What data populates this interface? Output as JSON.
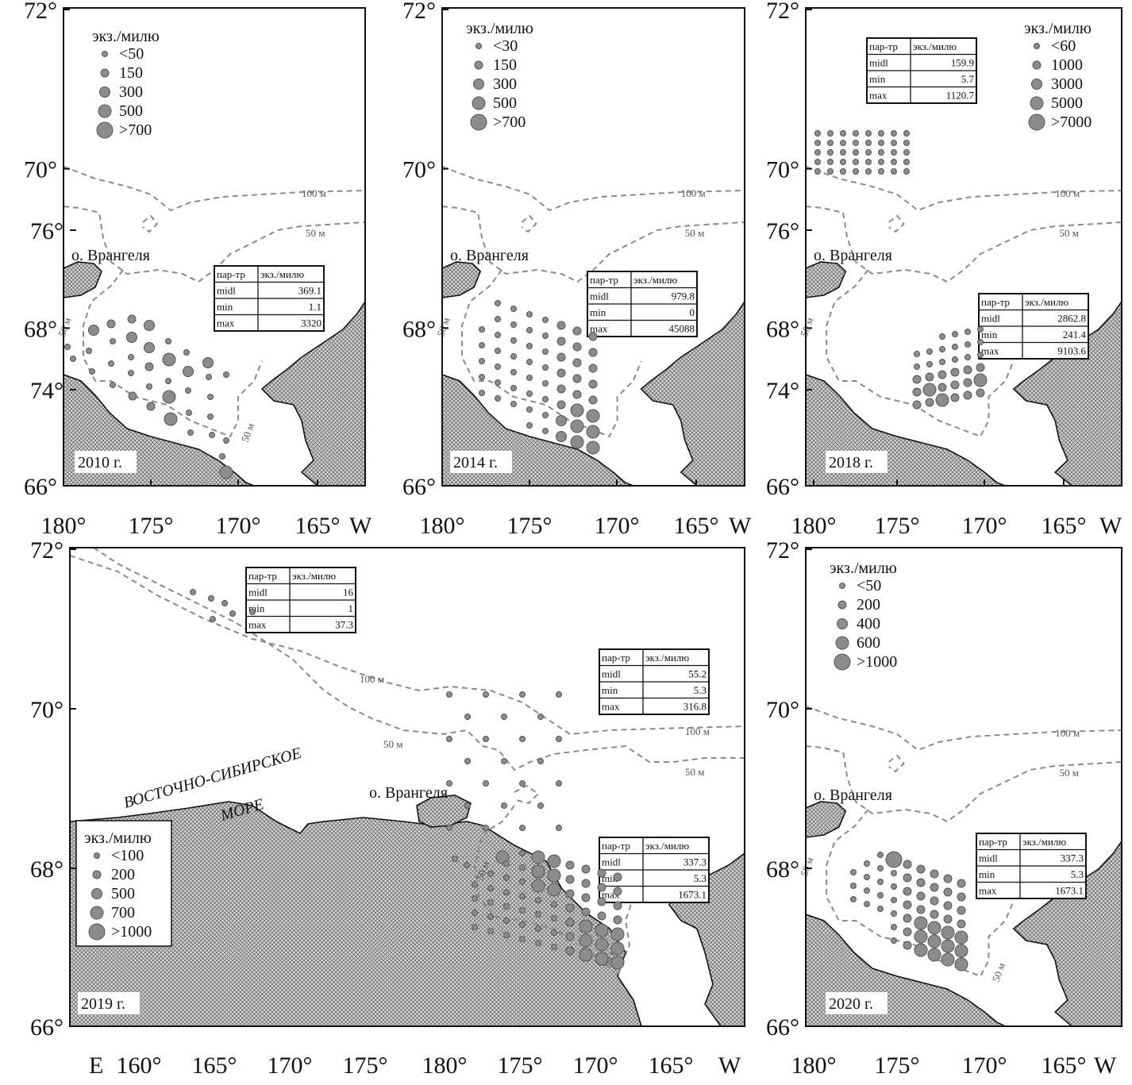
{
  "figure": {
    "lat_labels": [
      "76°",
      "74°",
      "72°",
      "70°",
      "68°",
      "66°"
    ],
    "lon_labels_top": [
      "180°",
      "175°",
      "170°",
      "165°",
      "W"
    ],
    "lon_labels_bottom": [
      "E",
      "160°",
      "165°",
      "170°",
      "175°",
      "180°",
      "175°",
      "170°",
      "165°",
      "W"
    ],
    "colors": {
      "points": "#8c8c8c",
      "isobath": "#8a8a8a",
      "land": "#cfcfcf"
    }
  },
  "panels": [
    {
      "year": "2010 г.",
      "island_label": "о. Врангеля",
      "isobaths": [
        "100 м",
        "50 м",
        "50 м",
        "50 м"
      ],
      "legend": {
        "title": "экз./милю",
        "items": [
          "<50",
          "150",
          "300",
          "500",
          ">700"
        ]
      },
      "tables": [
        {
          "header": [
            "пар-тр",
            "экз./милю"
          ],
          "rows": [
            [
              "midl",
              "369.1"
            ],
            [
              "min",
              "1.1"
            ],
            [
              "max",
              "3320"
            ]
          ]
        }
      ]
    },
    {
      "year": "2014 г.",
      "island_label": "о. Врангеля",
      "isobaths": [
        "100 м",
        "50 м",
        "50 м"
      ],
      "legend": {
        "title": "экз./милю",
        "items": [
          "<30",
          "150",
          "300",
          "500",
          ">700"
        ]
      },
      "tables": [
        {
          "header": [
            "пар-тр",
            "экз./милю"
          ],
          "rows": [
            [
              "midl",
              "979.8"
            ],
            [
              "min",
              "0"
            ],
            [
              "max",
              "45088"
            ]
          ]
        }
      ]
    },
    {
      "year": "2018 г.",
      "island_label": "о. Врангеля",
      "isobaths": [
        "100 м",
        "50 м",
        "50 м"
      ],
      "legend": {
        "title": "экз./милю",
        "items": [
          "<60",
          "1000",
          "3000",
          "5000",
          ">7000"
        ]
      },
      "tables": [
        {
          "header": [
            "пар-тр",
            "экз./милю"
          ],
          "rows": [
            [
              "midl",
              "159.9"
            ],
            [
              "min",
              "5.7"
            ],
            [
              "max",
              "1120.7"
            ]
          ]
        },
        {
          "header": [
            "пар-тр",
            "экз./милю"
          ],
          "rows": [
            [
              "midl",
              "2862.8"
            ],
            [
              "min",
              "241.4"
            ],
            [
              "max",
              "9103.6"
            ]
          ]
        }
      ]
    },
    {
      "year": "2019 г.",
      "island_label": "о. Врангеля",
      "sea_label": [
        "ВОСТОЧНО-СИБИРСКОЕ",
        "МОРЕ"
      ],
      "isobaths": [
        "100 м",
        "50 м",
        "100 м",
        "50 м",
        "50 м",
        "50 м"
      ],
      "legend": {
        "title": "экз./милю",
        "items": [
          "<100",
          "200",
          "500",
          "700",
          ">1000"
        ]
      },
      "tables": [
        {
          "header": [
            "пар-тр",
            "экз./милю"
          ],
          "rows": [
            [
              "midl",
              "16"
            ],
            [
              "min",
              "1"
            ],
            [
              "max",
              "37.3"
            ]
          ]
        },
        {
          "header": [
            "пар-тр",
            "экз./милю"
          ],
          "rows": [
            [
              "midl",
              "55.2"
            ],
            [
              "min",
              "5.3"
            ],
            [
              "max",
              "316.8"
            ]
          ]
        },
        {
          "header": [
            "пар-тр",
            "экз./милю"
          ],
          "rows": [
            [
              "midl",
              "337.3"
            ],
            [
              "min",
              "5.3"
            ],
            [
              "max",
              "1673.1"
            ]
          ]
        }
      ]
    },
    {
      "year": "2020 г.",
      "island_label": "о. Врангеля",
      "isobaths": [
        "100 м",
        "50 м",
        "50 м",
        "50 м"
      ],
      "legend": {
        "title": "экз./милю",
        "items": [
          "<50",
          "200",
          "400",
          "600",
          ">1000"
        ]
      },
      "tables": [
        {
          "header": [
            "пар-тр",
            "экз./милю"
          ],
          "rows": [
            [
              "midl",
              "337.3"
            ],
            [
              "min",
              "5.3"
            ],
            [
              "max",
              "1673.1"
            ]
          ]
        }
      ]
    }
  ]
}
